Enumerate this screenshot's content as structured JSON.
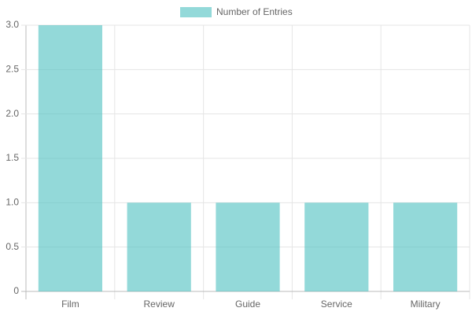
{
  "chart_data": {
    "type": "bar",
    "categories": [
      "Film",
      "Review",
      "Guide",
      "Service",
      "Military"
    ],
    "series": [
      {
        "name": "Number of Entries",
        "color": "rgba(75, 192, 192, 0.6)",
        "values": [
          3,
          1,
          1,
          1,
          1
        ]
      }
    ],
    "ylim": [
      0,
      3
    ],
    "yticks": [
      0,
      0.5,
      {
        "value": 1,
        "label": "1.0"
      },
      1.5,
      {
        "value": 2,
        "label": "2.0"
      },
      2.5,
      {
        "value": 3,
        "label": "3.0"
      }
    ],
    "grid": true,
    "legend": "top"
  }
}
